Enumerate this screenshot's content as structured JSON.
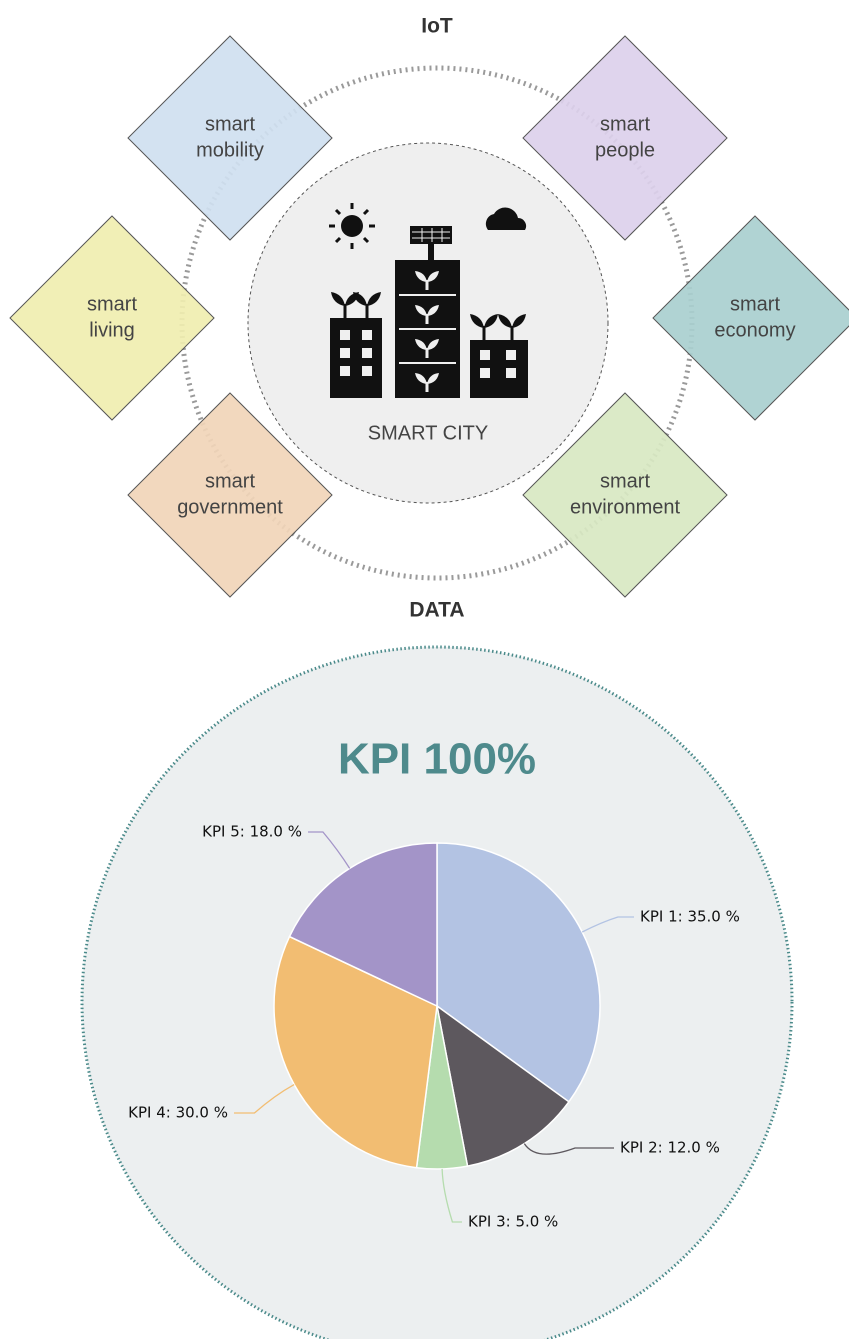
{
  "diagram": {
    "top_label": "IoT",
    "bottom_label": "DATA",
    "center_label": "SMART CITY",
    "nodes": [
      {
        "lines": [
          "smart",
          "mobility"
        ],
        "color": "#cfdff0"
      },
      {
        "lines": [
          "smart",
          "people"
        ],
        "color": "#dcd0ec"
      },
      {
        "lines": [
          "smart",
          "living"
        ],
        "color": "#f0eeb0"
      },
      {
        "lines": [
          "smart",
          "economy"
        ],
        "color": "#a9cfcf"
      },
      {
        "lines": [
          "smart",
          "government"
        ],
        "color": "#f1d5b8"
      },
      {
        "lines": [
          "smart",
          "environment"
        ],
        "color": "#d8e8c2"
      }
    ]
  },
  "chart_data": {
    "type": "pie",
    "title": "KPI 100%",
    "values": [
      35,
      12,
      5,
      30,
      18
    ],
    "value_labels": [
      "KPI 1: 35.0 %",
      "KPI 2: 12.0 %",
      "KPI 3: 5.0 %",
      "KPI 4: 30.0 %",
      "KPI 5: 18.0 %"
    ],
    "colors": [
      "#b3c3e3",
      "#5d585e",
      "#b5dcae",
      "#f2bd72",
      "#a394c8"
    ]
  }
}
